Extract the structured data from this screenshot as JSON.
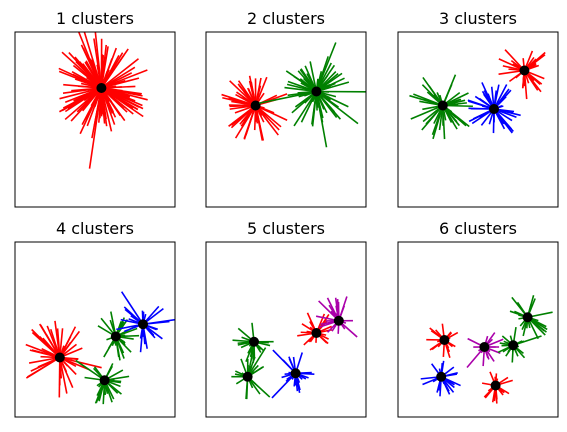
{
  "figure": {
    "background": "#ffffff"
  },
  "chart_data": [
    {
      "type": "scatter",
      "title": "1 clusters",
      "grid": false,
      "axis_ticks": false,
      "xlim": [
        0,
        10
      ],
      "ylim": [
        0,
        10
      ],
      "clusters": [
        {
          "color": "#ff0000",
          "center": [
            5.4,
            3.2
          ],
          "n_spokes": 120,
          "radius": 3.2,
          "seed": 11
        }
      ]
    },
    {
      "type": "scatter",
      "title": "2 clusters",
      "grid": false,
      "axis_ticks": false,
      "xlim": [
        0,
        10
      ],
      "ylim": [
        0,
        10
      ],
      "clusters": [
        {
          "color": "#ff0000",
          "center": [
            3.1,
            4.2
          ],
          "n_spokes": 60,
          "radius": 2.3,
          "seed": 21
        },
        {
          "color": "#008000",
          "center": [
            6.9,
            3.4
          ],
          "n_spokes": 70,
          "radius": 2.3,
          "seed": 22
        }
      ]
    },
    {
      "type": "scatter",
      "title": "3 clusters",
      "grid": false,
      "axis_ticks": false,
      "xlim": [
        0,
        10
      ],
      "ylim": [
        0,
        10
      ],
      "clusters": [
        {
          "color": "#008000",
          "center": [
            2.8,
            4.2
          ],
          "n_spokes": 45,
          "radius": 2.2,
          "seed": 31
        },
        {
          "color": "#0000ff",
          "center": [
            6.0,
            4.4
          ],
          "n_spokes": 45,
          "radius": 1.9,
          "seed": 32
        },
        {
          "color": "#ff0000",
          "center": [
            7.9,
            2.2
          ],
          "n_spokes": 35,
          "radius": 1.9,
          "seed": 33
        }
      ]
    },
    {
      "type": "scatter",
      "title": "4 clusters",
      "grid": false,
      "axis_ticks": false,
      "xlim": [
        0,
        10
      ],
      "ylim": [
        0,
        10
      ],
      "clusters": [
        {
          "color": "#ff0000",
          "center": [
            2.8,
            6.6
          ],
          "n_spokes": 45,
          "radius": 2.5,
          "seed": 41
        },
        {
          "color": "#008000",
          "center": [
            6.3,
            5.4
          ],
          "n_spokes": 28,
          "radius": 1.6,
          "seed": 42
        },
        {
          "color": "#0000ff",
          "center": [
            8.0,
            4.7
          ],
          "n_spokes": 30,
          "radius": 1.8,
          "seed": 43
        },
        {
          "color": "#008000",
          "center": [
            5.6,
            7.9
          ],
          "n_spokes": 28,
          "radius": 1.6,
          "seed": 44
        }
      ]
    },
    {
      "type": "scatter",
      "title": "5 clusters",
      "grid": false,
      "axis_ticks": false,
      "xlim": [
        0,
        10
      ],
      "ylim": [
        0,
        10
      ],
      "clusters": [
        {
          "color": "#008000",
          "center": [
            3.0,
            5.7
          ],
          "n_spokes": 22,
          "radius": 1.4,
          "seed": 51
        },
        {
          "color": "#008000",
          "center": [
            2.6,
            7.7
          ],
          "n_spokes": 22,
          "radius": 1.4,
          "seed": 52
        },
        {
          "color": "#0000ff",
          "center": [
            5.6,
            7.5
          ],
          "n_spokes": 25,
          "radius": 1.4,
          "seed": 53
        },
        {
          "color": "#ff0000",
          "center": [
            6.9,
            5.2
          ],
          "n_spokes": 25,
          "radius": 1.4,
          "seed": 54
        },
        {
          "color": "#aa00aa",
          "center": [
            8.3,
            4.5
          ],
          "n_spokes": 22,
          "radius": 1.6,
          "seed": 55
        }
      ]
    },
    {
      "type": "scatter",
      "title": "6 clusters",
      "grid": false,
      "axis_ticks": false,
      "xlim": [
        0,
        10
      ],
      "ylim": [
        0,
        10
      ],
      "clusters": [
        {
          "color": "#ff0000",
          "center": [
            2.9,
            5.6
          ],
          "n_spokes": 20,
          "radius": 1.2,
          "seed": 61
        },
        {
          "color": "#0000ff",
          "center": [
            2.7,
            7.7
          ],
          "n_spokes": 22,
          "radius": 1.3,
          "seed": 62
        },
        {
          "color": "#aa00aa",
          "center": [
            5.4,
            6.0
          ],
          "n_spokes": 18,
          "radius": 1.2,
          "seed": 63
        },
        {
          "color": "#008000",
          "center": [
            7.2,
            5.9
          ],
          "n_spokes": 20,
          "radius": 1.2,
          "seed": 64
        },
        {
          "color": "#008000",
          "center": [
            8.1,
            4.3
          ],
          "n_spokes": 22,
          "radius": 1.6,
          "seed": 65
        },
        {
          "color": "#ff0000",
          "center": [
            6.1,
            8.2
          ],
          "n_spokes": 20,
          "radius": 1.2,
          "seed": 66
        }
      ]
    }
  ]
}
